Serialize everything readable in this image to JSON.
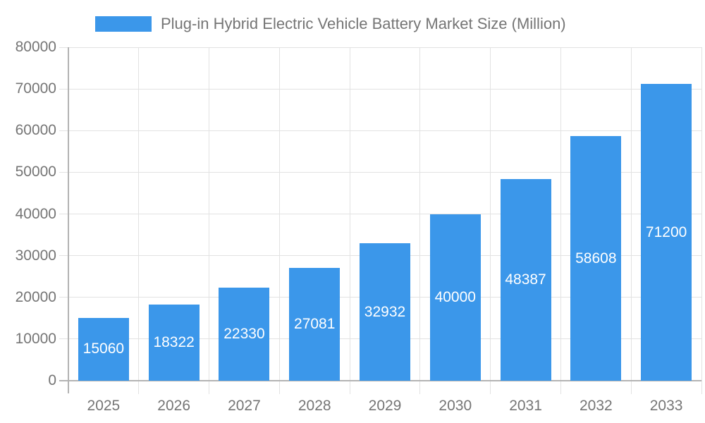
{
  "chart_data": {
    "type": "bar",
    "title": "Plug-in Hybrid Electric Vehicle Battery Market Size (Million)",
    "legend_entries": [
      "Plug-in Hybrid Electric Vehicle Battery Market Size (Million)"
    ],
    "legend_position": "top",
    "categories": [
      "2025",
      "2026",
      "2027",
      "2028",
      "2029",
      "2030",
      "2031",
      "2032",
      "2033"
    ],
    "series": [
      {
        "name": "Plug-in Hybrid Electric Vehicle Battery Market Size (Million)",
        "values": [
          15060,
          18322,
          22330,
          27081,
          32932,
          40000,
          48387,
          58608,
          71200
        ]
      }
    ],
    "data_labels": [
      "15060",
      "18322",
      "22330",
      "27081",
      "32932",
      "40000",
      "48387",
      "58608",
      "71200"
    ],
    "xlabel": "",
    "ylabel": "",
    "ylim": [
      0,
      80000
    ],
    "ytick_step": 10000,
    "yticks": [
      0,
      10000,
      20000,
      30000,
      40000,
      50000,
      60000,
      70000,
      80000
    ],
    "ytick_labels": [
      "0",
      "10000",
      "20000",
      "30000",
      "40000",
      "50000",
      "60000",
      "70000",
      "80000"
    ],
    "grid": true,
    "colors": {
      "bar": "#3b97ea",
      "bar_label": "#ffffff",
      "axis_text": "#757575",
      "axis_line": "#b3b3b3",
      "gridline": "#e2e2e2",
      "background": "#ffffff"
    }
  }
}
